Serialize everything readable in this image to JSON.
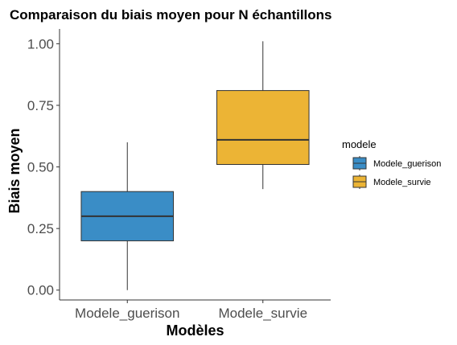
{
  "chart_data": {
    "type": "boxplot",
    "title": "Comparaison du biais moyen pour N échantillons",
    "xlabel": "Modèles",
    "ylabel": "Biais moyen",
    "ylim": [
      -0.04,
      1.06
    ],
    "yticks": [
      0.0,
      0.25,
      0.5,
      0.75,
      1.0
    ],
    "ytick_labels": [
      "0.00",
      "0.25",
      "0.50",
      "0.75",
      "1.00"
    ],
    "categories": [
      "Modele_guerison",
      "Modele_survie"
    ],
    "series": [
      {
        "name": "Modele_guerison",
        "color": "#3a8dc6",
        "min": 0.0,
        "q1": 0.2,
        "median": 0.3,
        "q3": 0.4,
        "max": 0.6
      },
      {
        "name": "Modele_survie",
        "color": "#ecb435",
        "min": 0.41,
        "q1": 0.51,
        "median": 0.61,
        "q3": 0.81,
        "max": 1.01
      }
    ],
    "legend": {
      "title": "modele",
      "position": "right"
    },
    "grid": false
  }
}
